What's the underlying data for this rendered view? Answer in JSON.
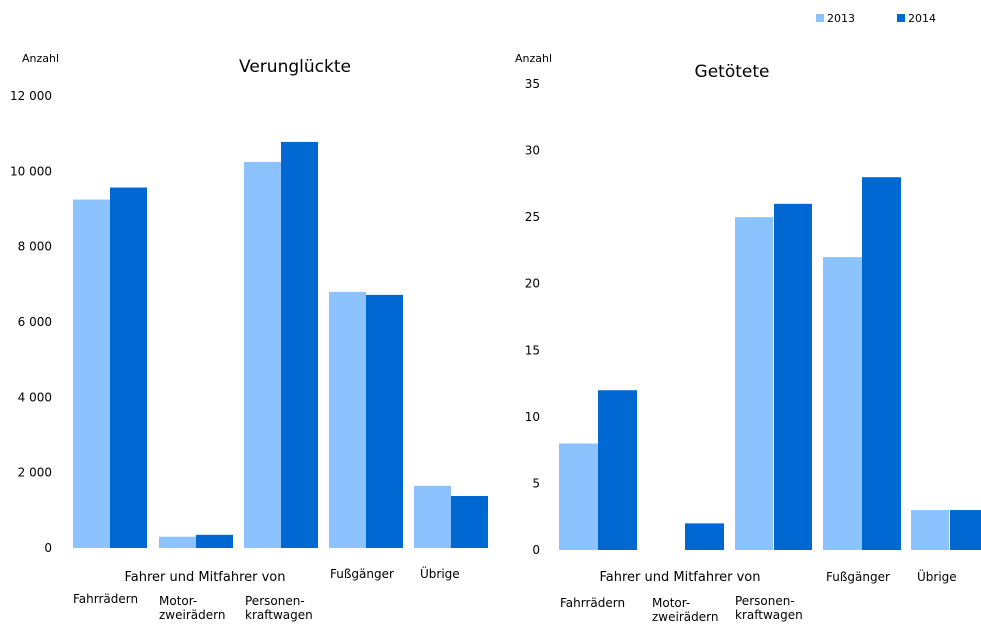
{
  "legend": {
    "items": [
      {
        "label": "2013",
        "color": "#8cc3ff"
      },
      {
        "label": "2014",
        "color": "#0068d3"
      }
    ]
  },
  "chart_data": [
    {
      "type": "bar",
      "title": "Verunglückte",
      "ylabel": "Anzahl",
      "ylim": [
        0,
        12000
      ],
      "yticks": [
        "0",
        "2 000",
        "4 000",
        "6 000",
        "8 000",
        "10 000",
        "12 000"
      ],
      "categories": [
        "Fahrrädern",
        "Motor- zweirädern",
        "Personen- kraftwagen",
        "Fußgänger",
        "Übrige"
      ],
      "group_label": "Fahrer und Mitfahrer von",
      "series": [
        {
          "name": "2013",
          "color": "#8cc3ff",
          "values": [
            9250,
            300,
            10250,
            6800,
            1650
          ]
        },
        {
          "name": "2014",
          "color": "#0068d3",
          "values": [
            9570,
            350,
            10780,
            6720,
            1380
          ]
        }
      ],
      "grid": false,
      "legend": "top-right"
    },
    {
      "type": "bar",
      "title": "Getötete",
      "ylabel": "Anzahl",
      "ylim": [
        0,
        35
      ],
      "yticks": [
        "0",
        "5",
        "10",
        "15",
        "20",
        "25",
        "30",
        "35"
      ],
      "categories": [
        "Fahrrädern",
        "Motor- zweirädern",
        "Personen- kraftwagen",
        "Fußgänger",
        "Übrige"
      ],
      "group_label": "Fahrer und Mitfahrer von",
      "series": [
        {
          "name": "2013",
          "color": "#8cc3ff",
          "values": [
            8,
            0,
            25,
            22,
            3
          ]
        },
        {
          "name": "2014",
          "color": "#0068d3",
          "values": [
            12,
            2,
            26,
            28,
            3
          ]
        }
      ],
      "grid": false,
      "legend": "top-right"
    }
  ]
}
